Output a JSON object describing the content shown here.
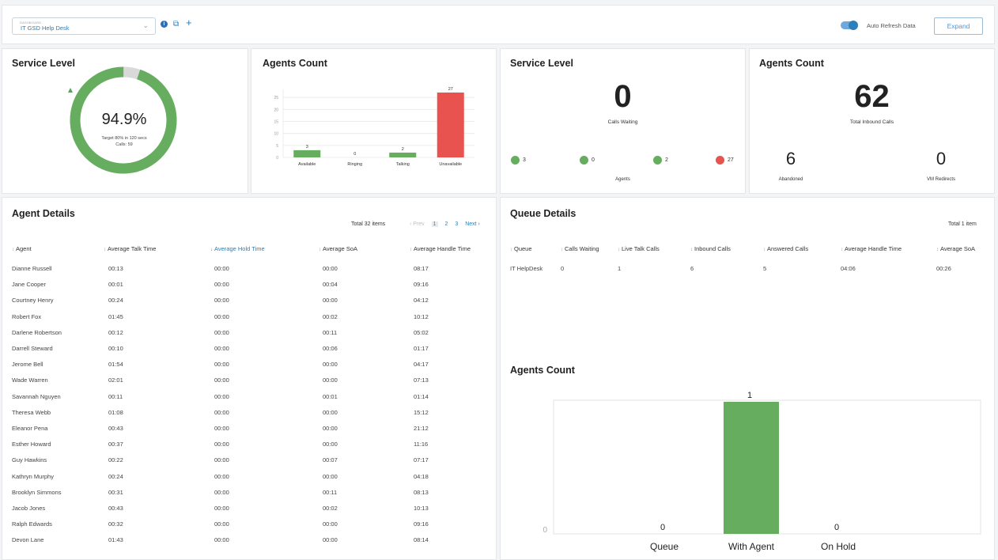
{
  "topbar": {
    "dashboard_small_label": "DASHBOARD",
    "dashboard_value": "IT GSD Help Desk",
    "auto_refresh_label": "Auto Refresh Data",
    "expand_label": "Expand",
    "auto_refresh_on": true,
    "accent_color": "#2c7fb8"
  },
  "service_level_gauge": {
    "title": "Service Level",
    "value": "94.9%",
    "value_fraction": 0.949,
    "target_text": "Target 80% in 120 secs",
    "calls_text": "Calls: 59",
    "ring_color": "#66ad5f",
    "ring_remainder_color": "#d9d9d9"
  },
  "agents_count_bar": {
    "title": "Agents Count",
    "chart_data": {
      "type": "bar",
      "categories": [
        "Available",
        "Ringing",
        "Talking",
        "Unavailable"
      ],
      "values": [
        3,
        0,
        2,
        27
      ],
      "ylim": [
        0,
        27
      ],
      "yticks": [
        0,
        5,
        10,
        15,
        20,
        25
      ],
      "colors": [
        "#66ad5f",
        "#66ad5f",
        "#66ad5f",
        "#e8534f"
      ],
      "grid": true
    }
  },
  "service_level_stats": {
    "title": "Service Level",
    "calls_waiting_value": "0",
    "calls_waiting_label": "Calls Waiting",
    "agent_dots": [
      {
        "value": "3",
        "color": "#66ad5f"
      },
      {
        "value": "0",
        "color": "#66ad5f"
      },
      {
        "value": "2",
        "color": "#66ad5f"
      },
      {
        "value": "27",
        "color": "#e8534f"
      }
    ],
    "agents_label": "Agents"
  },
  "agents_count_stats": {
    "title": "Agents Count",
    "total_inbound_value": "62",
    "total_inbound_label": "Total Inbound Calls",
    "abandoned_value": "6",
    "abandoned_label": "Abandoned",
    "vm_redirects_value": "0",
    "vm_redirects_label": "VM Redirects"
  },
  "agent_details": {
    "title": "Agent Details",
    "total": "Total 32 items",
    "pager": {
      "prev": "‹ Prev",
      "pages": [
        "1",
        "2",
        "3"
      ],
      "next": "Next ›"
    },
    "columns": [
      "Agent",
      "Average Talk Time",
      "Average Hold Time",
      "Average SoA",
      "Average Handle Time"
    ],
    "rows": [
      [
        "Dianne Russell",
        "00:13",
        "00:00",
        "00:00",
        "08:17"
      ],
      [
        "Jane Cooper",
        "00:01",
        "00:00",
        "00:04",
        "09:16"
      ],
      [
        "Courtney Henry",
        "00:24",
        "00:00",
        "00:00",
        "04:12"
      ],
      [
        "Robert Fox",
        "01:45",
        "00:00",
        "00:02",
        "10:12"
      ],
      [
        "Darlene Robertson",
        "00:12",
        "00:00",
        "00:11",
        "05:02"
      ],
      [
        "Darrell Steward",
        "00:10",
        "00:00",
        "00:06",
        "01:17"
      ],
      [
        "Jerome Bell",
        "01:54",
        "00:00",
        "00:00",
        "04:17"
      ],
      [
        "Wade Warren",
        "02:01",
        "00:00",
        "00:00",
        "07:13"
      ],
      [
        "Savannah Nguyen",
        "00:11",
        "00:00",
        "00:01",
        "01:14"
      ],
      [
        "Theresa Webb",
        "01:08",
        "00:00",
        "00:00",
        "15:12"
      ],
      [
        "Eleanor Pena",
        "00:43",
        "00:00",
        "00:00",
        "21:12"
      ],
      [
        "Esther Howard",
        "00:37",
        "00:00",
        "00:00",
        "11:16"
      ],
      [
        "Guy Hawkins",
        "00:22",
        "00:00",
        "00:07",
        "07:17"
      ],
      [
        "Kathryn Murphy",
        "00:24",
        "00:00",
        "00:00",
        "04:18"
      ],
      [
        "Brooklyn Simmons",
        "00:31",
        "00:00",
        "00:11",
        "08:13"
      ],
      [
        "Jacob Jones",
        "00:43",
        "00:00",
        "00:02",
        "10:13"
      ],
      [
        "Ralph Edwards",
        "00:32",
        "00:00",
        "00:00",
        "09:16"
      ],
      [
        "Devon Lane",
        "01:43",
        "00:00",
        "00:00",
        "08:14"
      ]
    ]
  },
  "queue_details": {
    "title": "Queue Details",
    "total": "Total 1 item",
    "columns": [
      "Queue",
      "Calls Waiting",
      "Live Talk Calls",
      "Inbound Calls",
      "Answered Calls",
      "Average Handle Time",
      "Average SoA"
    ],
    "rows": [
      [
        "IT HelpDesk",
        "0",
        "1",
        "6",
        "5",
        "04:06",
        "00:26"
      ]
    ]
  },
  "queue_agents_count": {
    "title": "Agents Count",
    "chart_data": {
      "type": "bar",
      "categories": [
        "Queue",
        "With Agent",
        "On Hold"
      ],
      "values": [
        0,
        1,
        0
      ],
      "ylim": [
        0,
        1
      ],
      "yticks": [
        0
      ],
      "colors": [
        "#66ad5f",
        "#66ad5f",
        "#66ad5f"
      ]
    }
  }
}
